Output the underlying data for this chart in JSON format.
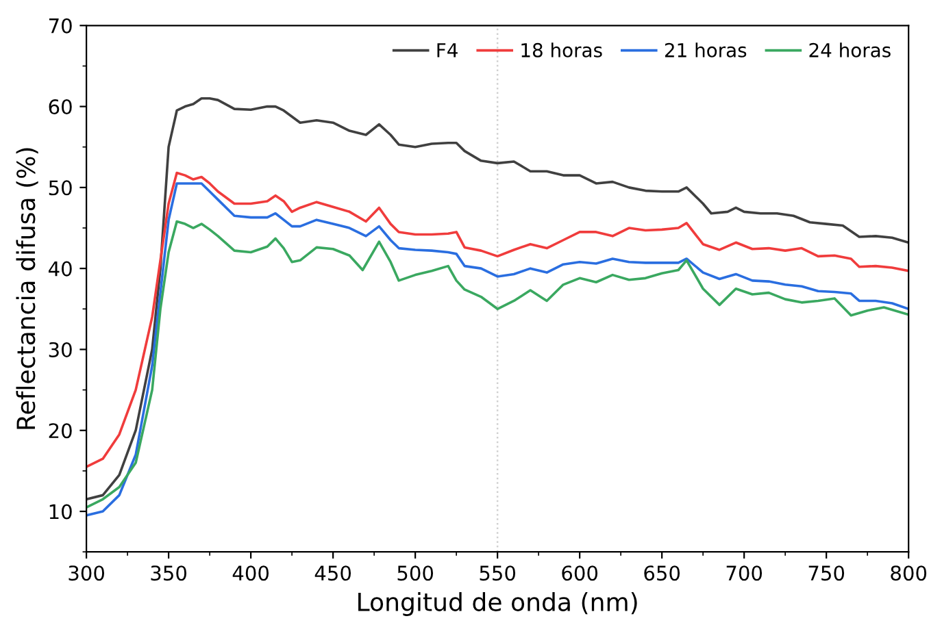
{
  "chart_data": {
    "type": "line",
    "xlabel": "Longitud de onda (nm)",
    "ylabel": "Reflectancia difusa (%)",
    "xlim": [
      300,
      800
    ],
    "xticks": [
      300,
      350,
      400,
      450,
      500,
      550,
      600,
      650,
      700,
      750,
      800
    ],
    "ylim": [
      5,
      70
    ],
    "yticks": [
      10,
      20,
      30,
      40,
      50,
      60,
      70
    ],
    "grid": false,
    "legend": "top right",
    "marker": "none",
    "line_style": "solid",
    "ref_lines": [
      {
        "axis": "x",
        "value": 550,
        "color": "#d0d0d0",
        "line_style": "dotted"
      }
    ],
    "series": [
      {
        "name": "F4",
        "color": "#404040",
        "x": [
          300,
          310,
          320,
          330,
          340,
          345,
          350,
          355,
          360,
          365,
          370,
          375,
          380,
          390,
          400,
          410,
          415,
          420,
          430,
          440,
          450,
          460,
          470,
          478,
          485,
          490,
          500,
          510,
          520,
          525,
          530,
          540,
          550,
          560,
          570,
          580,
          590,
          600,
          610,
          620,
          630,
          640,
          650,
          660,
          665,
          675,
          680,
          690,
          695,
          700,
          710,
          720,
          730,
          740,
          750,
          760,
          770,
          780,
          790,
          800
        ],
        "values": [
          11.5,
          12,
          14.5,
          20,
          30,
          40,
          55,
          59.5,
          60,
          60.3,
          61,
          61,
          60.8,
          59.7,
          59.6,
          60,
          60,
          59.5,
          58,
          58.3,
          58,
          57,
          56.5,
          57.8,
          56.5,
          55.3,
          55,
          55.4,
          55.5,
          55.5,
          54.5,
          53.3,
          53,
          53.2,
          52,
          52,
          51.5,
          51.5,
          50.5,
          50.7,
          50,
          49.6,
          49.5,
          49.5,
          50,
          48,
          46.8,
          47,
          47.5,
          47,
          46.8,
          46.8,
          46.5,
          45.7,
          45.5,
          45.3,
          43.9,
          44,
          43.8,
          43.2
        ]
      },
      {
        "name": "18 horas",
        "color": "#f03c3c",
        "x": [
          300,
          310,
          320,
          330,
          340,
          350,
          355,
          360,
          365,
          370,
          375,
          380,
          390,
          400,
          410,
          415,
          420,
          425,
          430,
          440,
          450,
          460,
          470,
          478,
          485,
          490,
          500,
          510,
          520,
          525,
          530,
          540,
          550,
          560,
          570,
          580,
          590,
          600,
          610,
          620,
          630,
          640,
          650,
          660,
          665,
          675,
          685,
          695,
          705,
          715,
          725,
          735,
          745,
          755,
          765,
          770,
          780,
          790,
          800
        ],
        "values": [
          15.5,
          16.5,
          19.5,
          25,
          34,
          48,
          51.8,
          51.5,
          51,
          51.3,
          50.5,
          49.5,
          48,
          48,
          48.3,
          49,
          48.3,
          47,
          47.5,
          48.2,
          47.6,
          47,
          45.8,
          47.5,
          45.5,
          44.5,
          44.2,
          44.2,
          44.3,
          44.5,
          42.6,
          42.2,
          41.5,
          42.3,
          43,
          42.5,
          43.5,
          44.5,
          44.5,
          44,
          45,
          44.7,
          44.8,
          45,
          45.6,
          43,
          42.3,
          43.2,
          42.4,
          42.5,
          42.2,
          42.5,
          41.5,
          41.6,
          41.2,
          40.2,
          40.3,
          40.1,
          39.7
        ]
      },
      {
        "name": "21 horas",
        "color": "#2a6ee0",
        "x": [
          300,
          310,
          320,
          330,
          340,
          345,
          350,
          355,
          360,
          370,
          375,
          380,
          390,
          400,
          410,
          415,
          420,
          425,
          430,
          440,
          450,
          460,
          470,
          478,
          485,
          490,
          500,
          510,
          520,
          525,
          530,
          540,
          550,
          560,
          570,
          580,
          590,
          600,
          610,
          620,
          630,
          640,
          650,
          660,
          665,
          675,
          685,
          695,
          705,
          715,
          725,
          735,
          745,
          755,
          765,
          770,
          780,
          790,
          800
        ],
        "values": [
          9.5,
          10,
          12,
          17,
          28,
          37,
          46,
          50.5,
          50.5,
          50.5,
          49.5,
          48.5,
          46.5,
          46.3,
          46.3,
          46.8,
          46,
          45.2,
          45.2,
          46,
          45.5,
          45,
          44,
          45.2,
          43.5,
          42.5,
          42.3,
          42.2,
          42,
          41.8,
          40.3,
          40,
          39,
          39.3,
          40,
          39.5,
          40.5,
          40.8,
          40.6,
          41.2,
          40.8,
          40.7,
          40.7,
          40.7,
          41.2,
          39.5,
          38.7,
          39.3,
          38.5,
          38.4,
          38,
          37.8,
          37.2,
          37.1,
          36.9,
          36,
          36,
          35.7,
          35
        ]
      },
      {
        "name": "24 horas",
        "color": "#3aa860",
        "x": [
          300,
          310,
          320,
          330,
          340,
          345,
          350,
          355,
          360,
          365,
          370,
          375,
          380,
          390,
          400,
          410,
          415,
          420,
          425,
          430,
          440,
          450,
          460,
          468,
          478,
          485,
          490,
          500,
          510,
          520,
          525,
          530,
          540,
          550,
          560,
          570,
          580,
          590,
          600,
          610,
          620,
          630,
          640,
          650,
          660,
          665,
          675,
          685,
          695,
          705,
          715,
          725,
          735,
          745,
          755,
          765,
          775,
          785,
          800
        ],
        "values": [
          10.5,
          11.5,
          13,
          16,
          25,
          35,
          42,
          45.8,
          45.5,
          45,
          45.5,
          44.8,
          44,
          42.2,
          42,
          42.7,
          43.7,
          42.5,
          40.8,
          41,
          42.6,
          42.4,
          41.6,
          39.8,
          43.3,
          40.8,
          38.5,
          39.2,
          39.7,
          40.3,
          38.5,
          37.4,
          36.5,
          35,
          36,
          37.3,
          36,
          38,
          38.8,
          38.3,
          39.2,
          38.6,
          38.8,
          39.4,
          39.8,
          41,
          37.5,
          35.5,
          37.5,
          36.8,
          37,
          36.2,
          35.8,
          36,
          36.3,
          34.2,
          34.8,
          35.2,
          34.3
        ]
      }
    ]
  }
}
